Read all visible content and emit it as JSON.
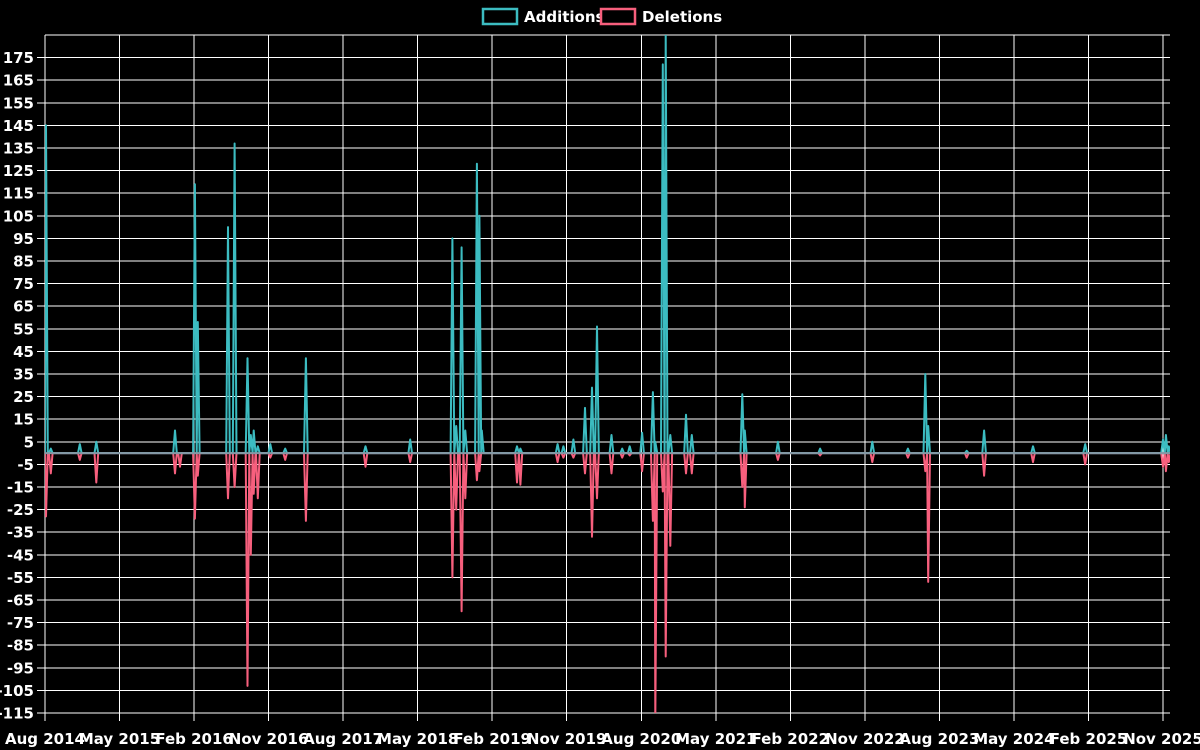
{
  "chart_data": {
    "type": "line",
    "title": "",
    "x_unit": "months_since_first_label",
    "x_axis": {
      "labels": [
        "Aug 2014",
        "May 2015",
        "Feb 2016",
        "Nov 2016",
        "Aug 2017",
        "May 2018",
        "Feb 2019",
        "Nov 2019",
        "Aug 2020",
        "May 2021",
        "Feb 2022",
        "Nov 2022",
        "Aug 2023",
        "May 2024",
        "Feb 2025",
        "Nov 2025"
      ],
      "label_step_months": 9,
      "total_months": 135
    },
    "y_axis": {
      "min": -115,
      "max": 185,
      "tick_step": 10,
      "labels": [
        "175",
        "165",
        "155",
        "145",
        "135",
        "125",
        "115",
        "105",
        "95",
        "85",
        "75",
        "65",
        "55",
        "45",
        "35",
        "25",
        "15",
        "5",
        "-5",
        "-15",
        "-25",
        "-35",
        "-45",
        "-55",
        "-65",
        "-75",
        "-85",
        "-95",
        "-105",
        "-115"
      ],
      "label_values": [
        175,
        165,
        155,
        145,
        135,
        125,
        115,
        105,
        95,
        85,
        75,
        65,
        55,
        45,
        35,
        25,
        15,
        5,
        -5,
        -15,
        -25,
        -35,
        -45,
        -55,
        -65,
        -75,
        -85,
        -95,
        -105,
        -115
      ]
    },
    "baseline_value": 0,
    "legend_position": "top-center",
    "grid": true,
    "colors": {
      "background": "#000000",
      "grid": "#ffffff",
      "baseline": "#8598a5",
      "text": "#ffffff",
      "additions": "#3cbcc1",
      "deletions": "#f75f7d"
    },
    "series": [
      {
        "name": "Additions",
        "color": "#3cbcc1",
        "points": [
          [
            0.12,
            145
          ],
          [
            0.7,
            2
          ],
          [
            4.2,
            4
          ],
          [
            6.2,
            5
          ],
          [
            15.7,
            10
          ],
          [
            18.1,
            119
          ],
          [
            18.45,
            58
          ],
          [
            22.1,
            100
          ],
          [
            22.9,
            137
          ],
          [
            24.45,
            42
          ],
          [
            24.85,
            8
          ],
          [
            25.2,
            10
          ],
          [
            25.7,
            3
          ],
          [
            27.2,
            4
          ],
          [
            29.0,
            2
          ],
          [
            31.5,
            42
          ],
          [
            38.7,
            3
          ],
          [
            44.1,
            6
          ],
          [
            49.2,
            95
          ],
          [
            49.65,
            12
          ],
          [
            50.3,
            91
          ],
          [
            50.75,
            10
          ],
          [
            52.15,
            128
          ],
          [
            52.45,
            105
          ],
          [
            52.75,
            10
          ],
          [
            57.0,
            3
          ],
          [
            57.4,
            2
          ],
          [
            61.9,
            4
          ],
          [
            62.6,
            3
          ],
          [
            63.8,
            6
          ],
          [
            65.2,
            20
          ],
          [
            66.05,
            29
          ],
          [
            66.65,
            56
          ],
          [
            68.4,
            8
          ],
          [
            69.7,
            2
          ],
          [
            70.6,
            3
          ],
          [
            72.1,
            9
          ],
          [
            73.4,
            27
          ],
          [
            73.7,
            5
          ],
          [
            74.6,
            172
          ],
          [
            74.95,
            186
          ],
          [
            75.5,
            8
          ],
          [
            77.4,
            17
          ],
          [
            78.1,
            8
          ],
          [
            84.2,
            26
          ],
          [
            84.5,
            10
          ],
          [
            88.5,
            5
          ],
          [
            93.6,
            2
          ],
          [
            99.9,
            5
          ],
          [
            104.2,
            2
          ],
          [
            106.3,
            35
          ],
          [
            106.65,
            12
          ],
          [
            111.3,
            1
          ],
          [
            113.4,
            10
          ],
          [
            119.3,
            3
          ],
          [
            125.6,
            4
          ],
          [
            135.0,
            6
          ],
          [
            135.35,
            8
          ],
          [
            135.7,
            3
          ]
        ]
      },
      {
        "name": "Deletions",
        "color": "#f75f7d",
        "points": [
          [
            0.12,
            -28
          ],
          [
            0.7,
            -9
          ],
          [
            4.2,
            -3
          ],
          [
            6.2,
            -13
          ],
          [
            15.7,
            -9
          ],
          [
            16.3,
            -6
          ],
          [
            18.1,
            -29
          ],
          [
            18.45,
            -10
          ],
          [
            22.1,
            -20
          ],
          [
            22.9,
            -15
          ],
          [
            24.45,
            -103
          ],
          [
            24.85,
            -45
          ],
          [
            25.2,
            -18
          ],
          [
            25.7,
            -20
          ],
          [
            27.2,
            -2
          ],
          [
            29.0,
            -3
          ],
          [
            31.5,
            -30
          ],
          [
            38.7,
            -6
          ],
          [
            44.1,
            -4
          ],
          [
            49.2,
            -55
          ],
          [
            49.65,
            -25
          ],
          [
            50.3,
            -70
          ],
          [
            50.75,
            -20
          ],
          [
            52.15,
            -12
          ],
          [
            52.45,
            -8
          ],
          [
            57.0,
            -13
          ],
          [
            57.4,
            -14
          ],
          [
            61.9,
            -4
          ],
          [
            62.6,
            -2
          ],
          [
            63.8,
            -2
          ],
          [
            65.2,
            -9
          ],
          [
            66.05,
            -37
          ],
          [
            66.65,
            -20
          ],
          [
            68.4,
            -9
          ],
          [
            69.7,
            -2
          ],
          [
            70.6,
            -1
          ],
          [
            72.1,
            -8
          ],
          [
            73.4,
            -30
          ],
          [
            73.7,
            -118
          ],
          [
            74.6,
            -17
          ],
          [
            74.95,
            -90
          ],
          [
            75.5,
            -41
          ],
          [
            77.4,
            -9
          ],
          [
            78.1,
            -9
          ],
          [
            84.2,
            -15
          ],
          [
            84.5,
            -24
          ],
          [
            88.5,
            -3
          ],
          [
            93.6,
            -1
          ],
          [
            99.9,
            -4
          ],
          [
            104.2,
            -2
          ],
          [
            106.3,
            -8
          ],
          [
            106.65,
            -57
          ],
          [
            111.3,
            -2
          ],
          [
            113.4,
            -10
          ],
          [
            119.3,
            -4
          ],
          [
            125.6,
            -5
          ],
          [
            135.0,
            -6
          ],
          [
            135.35,
            -8
          ],
          [
            135.7,
            -4
          ]
        ]
      }
    ]
  }
}
